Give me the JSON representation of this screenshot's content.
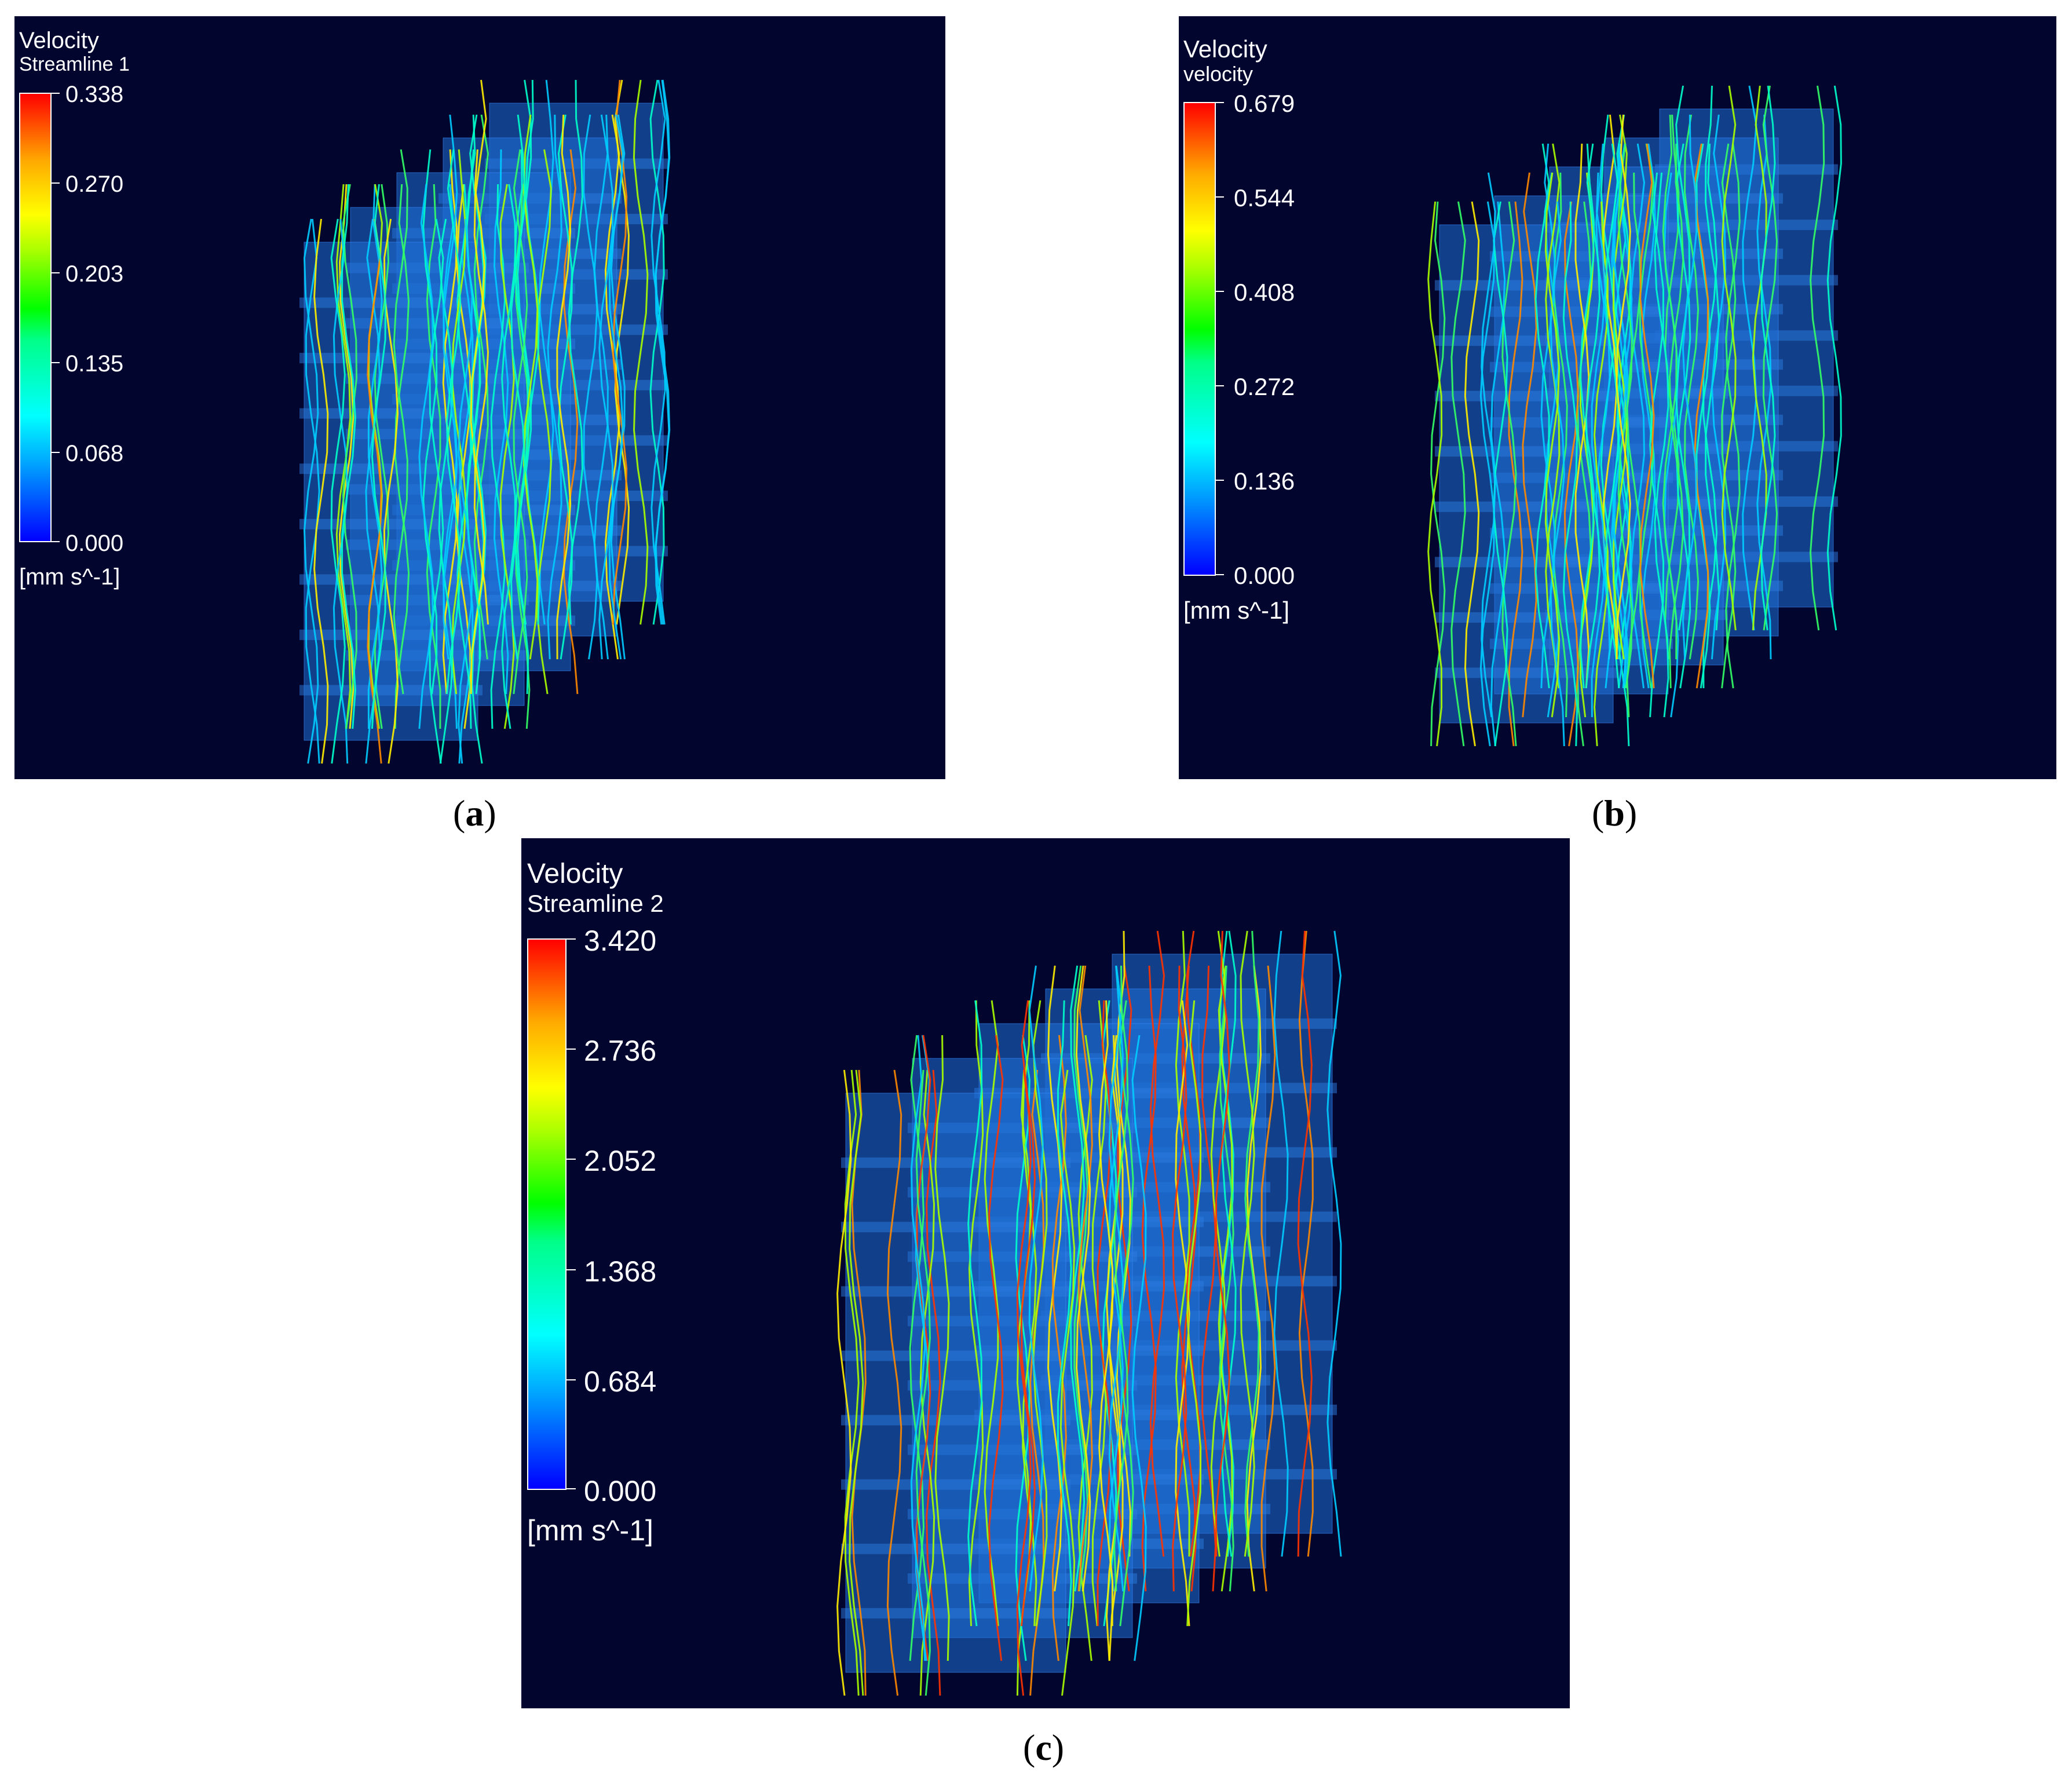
{
  "panels": [
    {
      "id": "a",
      "legend_title": "Velocity",
      "legend_subtitle": "Streamline 1",
      "ticks": [
        "0.338",
        "0.270",
        "0.203",
        "0.135",
        "0.068",
        "0.000"
      ],
      "units": "[mm s^-1]",
      "caption_letter": "a"
    },
    {
      "id": "b",
      "legend_title": "Velocity",
      "legend_subtitle": "velocity",
      "ticks": [
        "0.679",
        "0.544",
        "0.408",
        "0.272",
        "0.136",
        "0.000"
      ],
      "units": "[mm s^-1]",
      "caption_letter": "b"
    },
    {
      "id": "c",
      "legend_title": "Velocity",
      "legend_subtitle": "Streamline 2",
      "ticks": [
        "3.420",
        "2.736",
        "2.052",
        "1.368",
        "0.684",
        "0.000"
      ],
      "units": "[mm s^-1]",
      "caption_letter": "c"
    }
  ],
  "colors": {
    "background": "#02052e",
    "scaffold": "#1f6fd6",
    "colormap": [
      "#0000ff",
      "#00aaff",
      "#00ffff",
      "#00ff00",
      "#ffff00",
      "#ff0000"
    ]
  }
}
